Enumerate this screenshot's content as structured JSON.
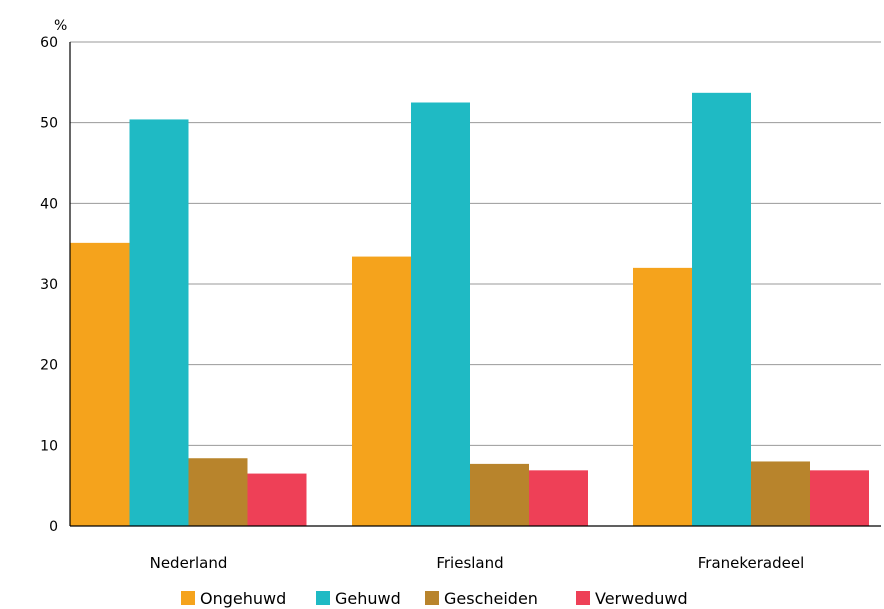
{
  "chart_data": {
    "type": "bar",
    "ylabel": "%",
    "ylim": [
      0,
      60
    ],
    "yticks": [
      0,
      10,
      20,
      30,
      40,
      50,
      60
    ],
    "grid": true,
    "legend_position": "bottom",
    "categories": [
      "Nederland",
      "Friesland",
      "Franekeradeel"
    ],
    "series": [
      {
        "name": "Ongehuwd",
        "color": "#f5a31c",
        "values": [
          35.1,
          33.4,
          32.0
        ]
      },
      {
        "name": "Gehuwd",
        "color": "#1fbac4",
        "values": [
          50.4,
          52.5,
          53.7
        ]
      },
      {
        "name": "Gescheiden",
        "color": "#b8842c",
        "values": [
          8.4,
          7.7,
          8.0
        ]
      },
      {
        "name": "Verweduwd",
        "color": "#ee4057",
        "values": [
          6.5,
          6.9,
          6.9
        ]
      }
    ]
  }
}
